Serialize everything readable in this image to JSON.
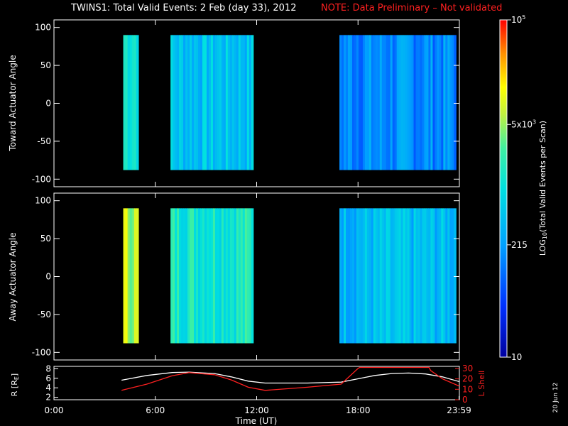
{
  "header": {
    "title": "TWINS1: Total Valid Events:  2 Feb (day  33), 2012",
    "note": "NOTE: Data Preliminary – Not validated"
  },
  "stamp": "20 Jun 12",
  "colors": {
    "note": "#ff2020",
    "lshell": "#ff2020",
    "radius": "#ffffff",
    "background": "#000000"
  },
  "chart_data": [
    {
      "type": "heatmap",
      "panel": "toward",
      "ylabel": "Toward Actuator Angle",
      "ylim": [
        -110,
        110
      ],
      "yticks": [
        "100",
        "50",
        "0",
        "-50",
        "-100"
      ],
      "xlim": [
        0,
        24
      ],
      "angle_range": [
        -88,
        90
      ],
      "segments": [
        {
          "start": 4.1,
          "end": 5.0,
          "level": 0.55
        },
        {
          "start": 6.9,
          "end": 11.8,
          "level": 0.42
        },
        {
          "start": 16.9,
          "end": 23.8,
          "level": 0.3
        }
      ]
    },
    {
      "type": "heatmap",
      "panel": "away",
      "ylabel": "Away Actuator Angle",
      "ylim": [
        -110,
        110
      ],
      "yticks": [
        "100",
        "50",
        "0",
        "-50",
        "-100"
      ],
      "xlim": [
        0,
        24
      ],
      "angle_range": [
        -88,
        90
      ],
      "segments": [
        {
          "start": 4.1,
          "end": 5.0,
          "level": 0.72
        },
        {
          "start": 6.9,
          "end": 11.8,
          "level": 0.55
        },
        {
          "start": 16.9,
          "end": 23.8,
          "level": 0.4
        }
      ]
    },
    {
      "type": "line",
      "panel": "orbit",
      "ylabel": "R [R",
      "ylabel_sub": "E",
      "ylabel_end": "]",
      "y2label": "L Shell",
      "yticks": [
        "8",
        "6",
        "4",
        "2"
      ],
      "y2ticks": [
        "30",
        "20",
        "10",
        "0"
      ],
      "ylim": [
        1.5,
        8.5
      ],
      "y2lim": [
        0,
        32
      ],
      "xlabel": "Time (UT)",
      "xticks": [
        "0:00",
        "6:00",
        "12:00",
        "18:00",
        "23:59"
      ],
      "xtick_values": [
        0,
        6,
        12,
        18,
        23.98
      ],
      "series": [
        {
          "key": "radius",
          "x": [
            4.0,
            5.5,
            7.0,
            8.0,
            9.5,
            10.5,
            11.5,
            12.5,
            15,
            17,
            18,
            19,
            20,
            21,
            22,
            23,
            24
          ],
          "y": [
            5.6,
            6.6,
            7.2,
            7.3,
            7.0,
            6.3,
            5.4,
            5.0,
            5.0,
            5.2,
            5.9,
            6.6,
            7.0,
            7.1,
            6.9,
            6.3,
            5.3
          ]
        },
        {
          "key": "lshell",
          "x": [
            4.0,
            5.5,
            7.0,
            8.0,
            9.5,
            10.5,
            11.5,
            12.5,
            15,
            17,
            18,
            18.1,
            22.2,
            22.3,
            23,
            24
          ],
          "y": [
            9,
            15,
            23,
            26,
            24,
            19,
            12,
            9,
            12,
            15,
            30,
            31,
            31,
            28,
            20,
            13
          ]
        }
      ]
    }
  ],
  "colorbar": {
    "label_log": "LOG",
    "label_sub": "10",
    "label_rest": "(Total Valid Events per Scan)",
    "ticks": [
      {
        "label": "10",
        "frac": 0.0
      },
      {
        "label": "215",
        "frac": 0.333
      },
      {
        "label": "5x10",
        "sup": "3",
        "frac": 0.69
      },
      {
        "label": "10",
        "sup": "5",
        "frac": 1.0
      }
    ]
  }
}
